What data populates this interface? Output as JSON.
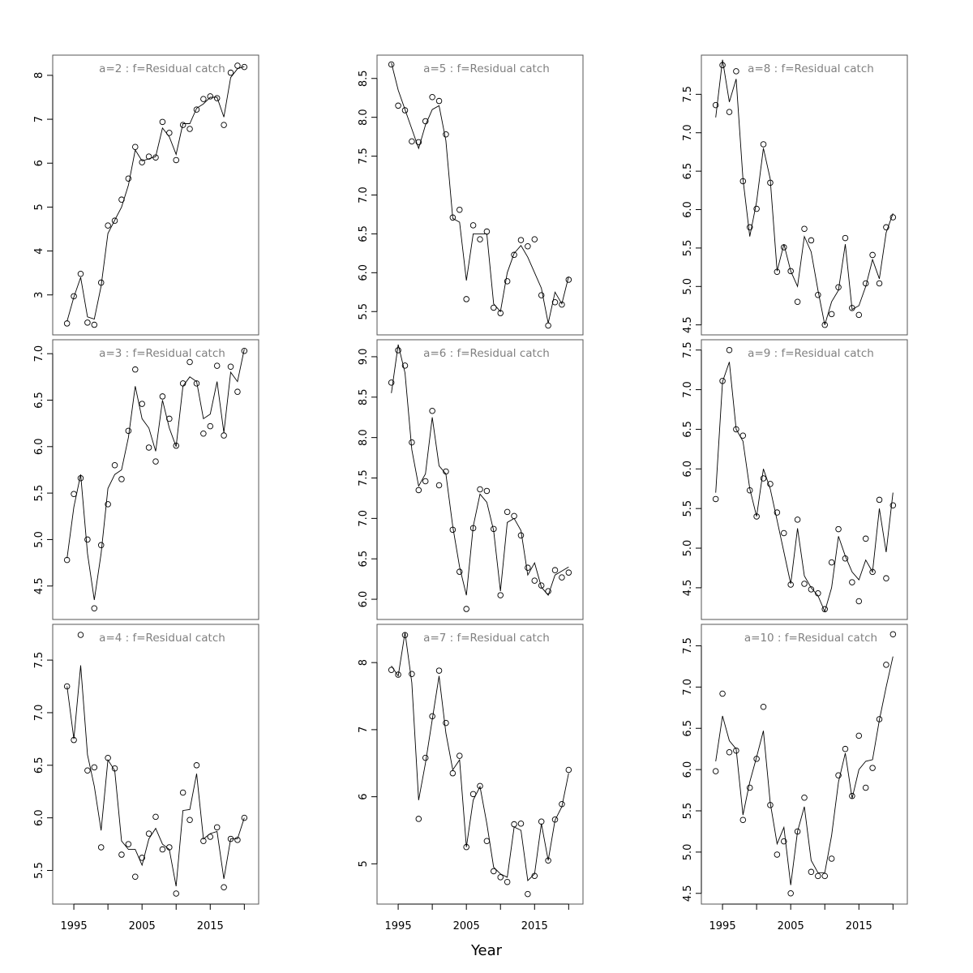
{
  "chart_data": {
    "type": "line",
    "xlabel": "Year",
    "years": [
      1994,
      1995,
      1996,
      1997,
      1998,
      1999,
      2000,
      2001,
      2002,
      2003,
      2004,
      2005,
      2006,
      2007,
      2008,
      2009,
      2010,
      2011,
      2012,
      2013,
      2014,
      2015,
      2016,
      2017,
      2018,
      2019,
      2020
    ],
    "xlim": [
      1991.9,
      2022.1
    ],
    "xticks": [
      1995,
      2000,
      2005,
      2010,
      2015,
      2020
    ],
    "xtick_labels": [
      "1995",
      "2005",
      "2015"
    ],
    "panels": [
      {
        "title": "a=2  :  f=Residual catch",
        "ylim": [
          2.09,
          8.46
        ],
        "yticks": [
          "3",
          "4",
          "5",
          "6",
          "7",
          "8"
        ],
        "observed": [
          2.35,
          2.97,
          3.48,
          2.37,
          2.32,
          3.28,
          4.58,
          4.69,
          5.17,
          5.65,
          6.37,
          6.02,
          6.15,
          6.13,
          6.94,
          6.69,
          6.07,
          6.87,
          6.78,
          7.22,
          7.46,
          7.52,
          7.48,
          6.87,
          8.06,
          8.22,
          8.19
        ],
        "fitted": [
          2.4,
          2.95,
          3.4,
          2.5,
          2.45,
          3.2,
          4.4,
          4.7,
          5.0,
          5.5,
          6.3,
          6.05,
          6.1,
          6.15,
          6.8,
          6.6,
          6.2,
          6.9,
          6.9,
          7.25,
          7.35,
          7.5,
          7.5,
          7.05,
          7.95,
          8.15,
          8.2
        ]
      },
      {
        "title": "a=3  :  f=Residual catch",
        "ylim": [
          4.14,
          7.15
        ],
        "yticks": [
          "4.5",
          "5.0",
          "5.5",
          "6.0",
          "6.5",
          "7.0"
        ],
        "observed": [
          4.78,
          5.49,
          5.66,
          5.0,
          4.26,
          4.94,
          5.38,
          5.8,
          5.65,
          6.17,
          6.83,
          6.46,
          5.99,
          5.84,
          6.54,
          6.3,
          6.01,
          6.68,
          6.91,
          6.68,
          6.14,
          6.22,
          6.87,
          6.12,
          6.86,
          6.59,
          7.03
        ],
        "fitted": [
          4.8,
          5.35,
          5.7,
          4.85,
          4.35,
          4.85,
          5.55,
          5.7,
          5.75,
          6.1,
          6.65,
          6.3,
          6.2,
          5.95,
          6.5,
          6.2,
          6.0,
          6.65,
          6.75,
          6.7,
          6.3,
          6.35,
          6.7,
          6.15,
          6.8,
          6.7,
          7.05
        ]
      },
      {
        "title": "a=4  :  f=Residual catch",
        "ylim": [
          5.18,
          7.84
        ],
        "yticks": [
          "5.5",
          "6.0",
          "6.5",
          "7.0",
          "7.5"
        ],
        "observed": [
          7.25,
          6.74,
          7.74,
          6.45,
          6.48,
          5.72,
          6.57,
          6.47,
          5.65,
          5.75,
          5.44,
          5.62,
          5.85,
          6.01,
          5.7,
          5.72,
          5.28,
          6.24,
          5.98,
          6.5,
          5.78,
          5.82,
          5.91,
          5.34,
          5.8,
          5.79,
          6.0
        ],
        "fitted": [
          7.25,
          6.75,
          7.45,
          6.6,
          6.3,
          5.88,
          6.55,
          6.45,
          5.78,
          5.7,
          5.7,
          5.55,
          5.8,
          5.9,
          5.75,
          5.7,
          5.35,
          6.07,
          6.08,
          6.42,
          5.8,
          5.85,
          5.87,
          5.42,
          5.8,
          5.8,
          6.0
        ]
      },
      {
        "title": "a=5  :  f=Residual catch",
        "ylim": [
          5.2,
          8.8
        ],
        "yticks": [
          "5.5",
          "6.0",
          "6.5",
          "7.0",
          "7.5",
          "8.0",
          "8.5"
        ],
        "observed": [
          8.68,
          8.15,
          8.09,
          7.69,
          7.68,
          7.95,
          8.26,
          8.21,
          7.78,
          6.71,
          6.81,
          5.66,
          6.61,
          6.43,
          6.53,
          5.55,
          5.48,
          5.89,
          6.23,
          6.42,
          6.34,
          6.43,
          5.71,
          5.32,
          5.62,
          5.59,
          5.91
        ],
        "fitted": [
          8.7,
          8.35,
          8.1,
          7.85,
          7.6,
          7.9,
          8.1,
          8.15,
          7.7,
          6.7,
          6.65,
          5.9,
          6.5,
          6.5,
          6.5,
          5.6,
          5.5,
          6.0,
          6.25,
          6.35,
          6.2,
          6.0,
          5.8,
          5.35,
          5.75,
          5.6,
          5.95
        ]
      },
      {
        "title": "a=6  :  f=Residual catch",
        "ylim": [
          5.75,
          9.21
        ],
        "yticks": [
          "6.0",
          "6.5",
          "7.0",
          "7.5",
          "8.0",
          "8.5",
          "9.0"
        ],
        "observed": [
          8.68,
          9.08,
          8.89,
          7.94,
          7.35,
          7.46,
          8.33,
          7.41,
          7.58,
          6.86,
          6.34,
          5.88,
          6.88,
          7.36,
          7.34,
          6.87,
          6.05,
          7.08,
          7.03,
          6.79,
          6.39,
          6.23,
          6.17,
          6.1,
          6.36,
          6.27,
          6.33
        ],
        "fitted": [
          8.55,
          9.15,
          8.8,
          7.85,
          7.4,
          7.55,
          8.25,
          7.65,
          7.55,
          6.9,
          6.4,
          6.05,
          6.9,
          7.3,
          7.2,
          6.85,
          6.1,
          6.95,
          7.0,
          6.85,
          6.3,
          6.45,
          6.15,
          6.05,
          6.3,
          6.35,
          6.4
        ]
      },
      {
        "title": "a=7  :  f=Residual catch",
        "ylim": [
          4.4,
          8.57
        ],
        "yticks": [
          "5",
          "6",
          "7",
          "8"
        ],
        "observed": [
          7.89,
          7.82,
          8.41,
          7.83,
          5.67,
          6.58,
          7.2,
          7.88,
          7.1,
          6.35,
          6.61,
          5.25,
          6.04,
          6.16,
          5.34,
          4.89,
          4.8,
          4.73,
          5.59,
          5.6,
          4.55,
          4.82,
          5.63,
          5.05,
          5.66,
          5.89,
          6.4
        ],
        "fitted": [
          7.95,
          7.8,
          8.45,
          7.7,
          5.95,
          6.5,
          7.15,
          7.8,
          6.95,
          6.4,
          6.55,
          5.25,
          5.95,
          6.15,
          5.6,
          4.95,
          4.85,
          4.8,
          5.55,
          5.5,
          4.75,
          4.85,
          5.6,
          5.05,
          5.65,
          5.85,
          6.35
        ]
      },
      {
        "title": "a=8  :  f=Residual catch",
        "ylim": [
          4.37,
          8.01
        ],
        "yticks": [
          "4.5",
          "5.0",
          "5.5",
          "6.0",
          "6.5",
          "7.0",
          "7.5"
        ],
        "observed": [
          7.36,
          7.88,
          7.27,
          7.8,
          6.37,
          5.77,
          6.01,
          6.85,
          6.35,
          5.19,
          5.51,
          5.2,
          4.8,
          5.75,
          5.6,
          4.89,
          4.5,
          4.64,
          4.99,
          5.63,
          4.72,
          4.63,
          5.04,
          5.41,
          5.04,
          5.77,
          5.9
        ],
        "fitted": [
          7.2,
          7.95,
          7.4,
          7.7,
          6.4,
          5.65,
          6.1,
          6.8,
          6.4,
          5.2,
          5.55,
          5.2,
          5.0,
          5.65,
          5.45,
          4.95,
          4.5,
          4.8,
          4.95,
          5.55,
          4.7,
          4.75,
          5.0,
          5.35,
          5.1,
          5.7,
          5.95
        ]
      },
      {
        "title": "a=9  :  f=Residual catch",
        "ylim": [
          4.1,
          7.63
        ],
        "yticks": [
          "4.5",
          "5.0",
          "5.5",
          "6.0",
          "6.5",
          "7.0",
          "7.5"
        ],
        "observed": [
          5.62,
          7.11,
          7.5,
          6.5,
          6.42,
          5.73,
          5.4,
          5.88,
          5.81,
          5.45,
          5.19,
          4.54,
          5.36,
          4.55,
          4.48,
          4.43,
          4.23,
          4.82,
          5.24,
          4.87,
          4.57,
          4.33,
          5.12,
          4.7,
          5.61,
          4.62,
          5.54
        ],
        "fitted": [
          5.7,
          7.1,
          7.35,
          6.5,
          6.35,
          5.75,
          5.4,
          6.0,
          5.75,
          5.35,
          4.95,
          4.55,
          5.25,
          4.65,
          4.5,
          4.4,
          4.2,
          4.5,
          5.15,
          4.9,
          4.7,
          4.6,
          4.85,
          4.7,
          5.5,
          4.95,
          5.7
        ]
      },
      {
        "title": "a=10  :  f=Residual catch",
        "ylim": [
          4.37,
          7.76
        ],
        "yticks": [
          "4.5",
          "5.0",
          "5.5",
          "6.0",
          "6.5",
          "7.0",
          "7.5"
        ],
        "observed": [
          5.98,
          6.92,
          6.21,
          6.23,
          5.39,
          5.78,
          6.13,
          6.76,
          5.57,
          4.97,
          5.13,
          4.5,
          5.25,
          5.66,
          4.76,
          4.71,
          4.71,
          4.92,
          5.93,
          6.25,
          5.68,
          6.41,
          5.78,
          6.02,
          6.61,
          7.27,
          7.64
        ],
        "fitted": [
          6.1,
          6.65,
          6.35,
          6.25,
          5.45,
          5.85,
          6.15,
          6.47,
          5.6,
          5.1,
          5.3,
          4.6,
          5.25,
          5.55,
          4.9,
          4.75,
          4.75,
          5.2,
          5.85,
          6.2,
          5.65,
          6.0,
          6.1,
          6.12,
          6.6,
          7.0,
          7.37
        ]
      }
    ]
  }
}
